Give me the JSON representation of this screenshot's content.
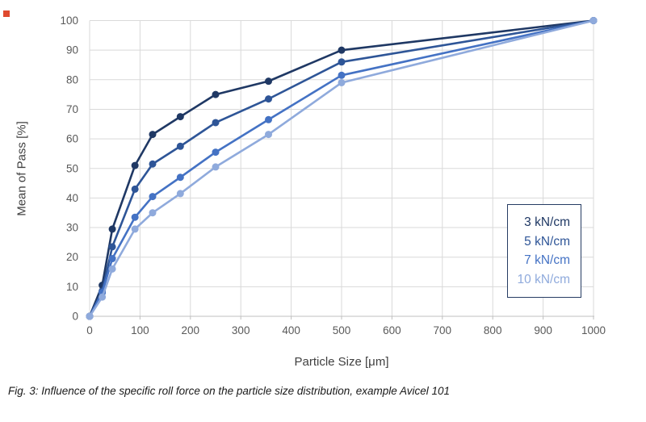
{
  "decorations": {
    "red_square_color": "#df4a2f"
  },
  "chart_data": {
    "type": "line",
    "title": "",
    "xlabel": "Particle Size [μm]",
    "ylabel": "Mean of Pass [%]",
    "xlim": [
      0,
      1000
    ],
    "ylim": [
      0,
      100
    ],
    "x_ticks": [
      0,
      100,
      200,
      300,
      400,
      500,
      600,
      700,
      800,
      900,
      1000
    ],
    "y_ticks": [
      0,
      10,
      20,
      30,
      40,
      50,
      60,
      70,
      80,
      90,
      100
    ],
    "grid": true,
    "legend_position": "inside-right",
    "x": [
      0,
      25,
      45,
      90,
      125,
      180,
      250,
      355,
      500,
      1000
    ],
    "series": [
      {
        "name": "3 kN/cm",
        "color": "#1f3864",
        "values": [
          0,
          10.5,
          29.5,
          51,
          61.5,
          67.5,
          75,
          79.5,
          90,
          100
        ]
      },
      {
        "name": "5 kN/cm",
        "color": "#2e5597",
        "values": [
          0,
          8.5,
          23.5,
          43,
          51.5,
          57.5,
          65.5,
          73.5,
          86,
          100
        ]
      },
      {
        "name": "7 kN/cm",
        "color": "#4472c4",
        "values": [
          0,
          8,
          19.5,
          33.5,
          40.5,
          47,
          55.5,
          66.5,
          81.5,
          100
        ]
      },
      {
        "name": "10 kN/cm",
        "color": "#8faadc",
        "values": [
          0,
          6.5,
          16,
          29.5,
          35,
          41.5,
          50.5,
          61.5,
          79,
          100
        ]
      }
    ],
    "colors": {
      "gridline": "#d9d9d9",
      "axis_line": "#bfbfbf",
      "tick_label": "#595959"
    }
  },
  "caption": "Fig. 3: Influence of the specific roll force on the particle size distribution, example Avicel 101"
}
